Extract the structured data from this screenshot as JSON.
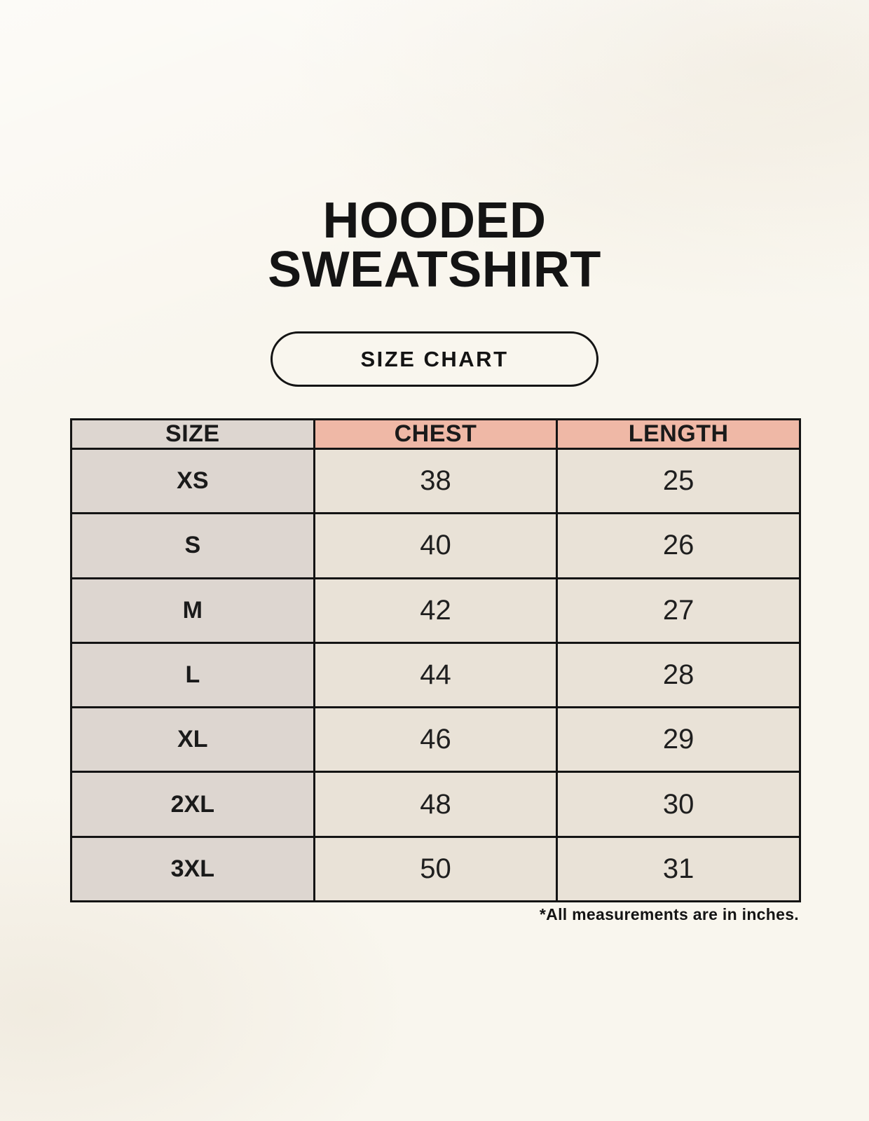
{
  "page": {
    "title_line1": "HOODED",
    "title_line2": "SWEATSHIRT",
    "badge_label": "SIZE CHART",
    "footnote": "*All measurements are in inches."
  },
  "table": {
    "columns": [
      "SIZE",
      "CHEST",
      "LENGTH"
    ],
    "rows": [
      {
        "size": "XS",
        "chest": "38",
        "length": "25"
      },
      {
        "size": "S",
        "chest": "40",
        "length": "26"
      },
      {
        "size": "M",
        "chest": "42",
        "length": "27"
      },
      {
        "size": "L",
        "chest": "44",
        "length": "28"
      },
      {
        "size": "XL",
        "chest": "46",
        "length": "29"
      },
      {
        "size": "2XL",
        "chest": "48",
        "length": "30"
      },
      {
        "size": "3XL",
        "chest": "50",
        "length": "31"
      }
    ]
  },
  "colors": {
    "page_background": "#f9f6ee",
    "header_accent": "#efb8a6",
    "size_column": "#ddd6d0",
    "data_cell": "#e9e2d7",
    "table_border": "#141414",
    "text": "#1a1a1a"
  },
  "chart_data": {
    "type": "table",
    "title": "HOODED SWEATSHIRT SIZE CHART",
    "columns": [
      "SIZE",
      "CHEST",
      "LENGTH"
    ],
    "rows": [
      [
        "XS",
        38,
        25
      ],
      [
        "S",
        40,
        26
      ],
      [
        "M",
        42,
        27
      ],
      [
        "L",
        44,
        28
      ],
      [
        "XL",
        46,
        29
      ],
      [
        "2XL",
        48,
        30
      ],
      [
        "3XL",
        50,
        31
      ]
    ],
    "units": "inches"
  }
}
